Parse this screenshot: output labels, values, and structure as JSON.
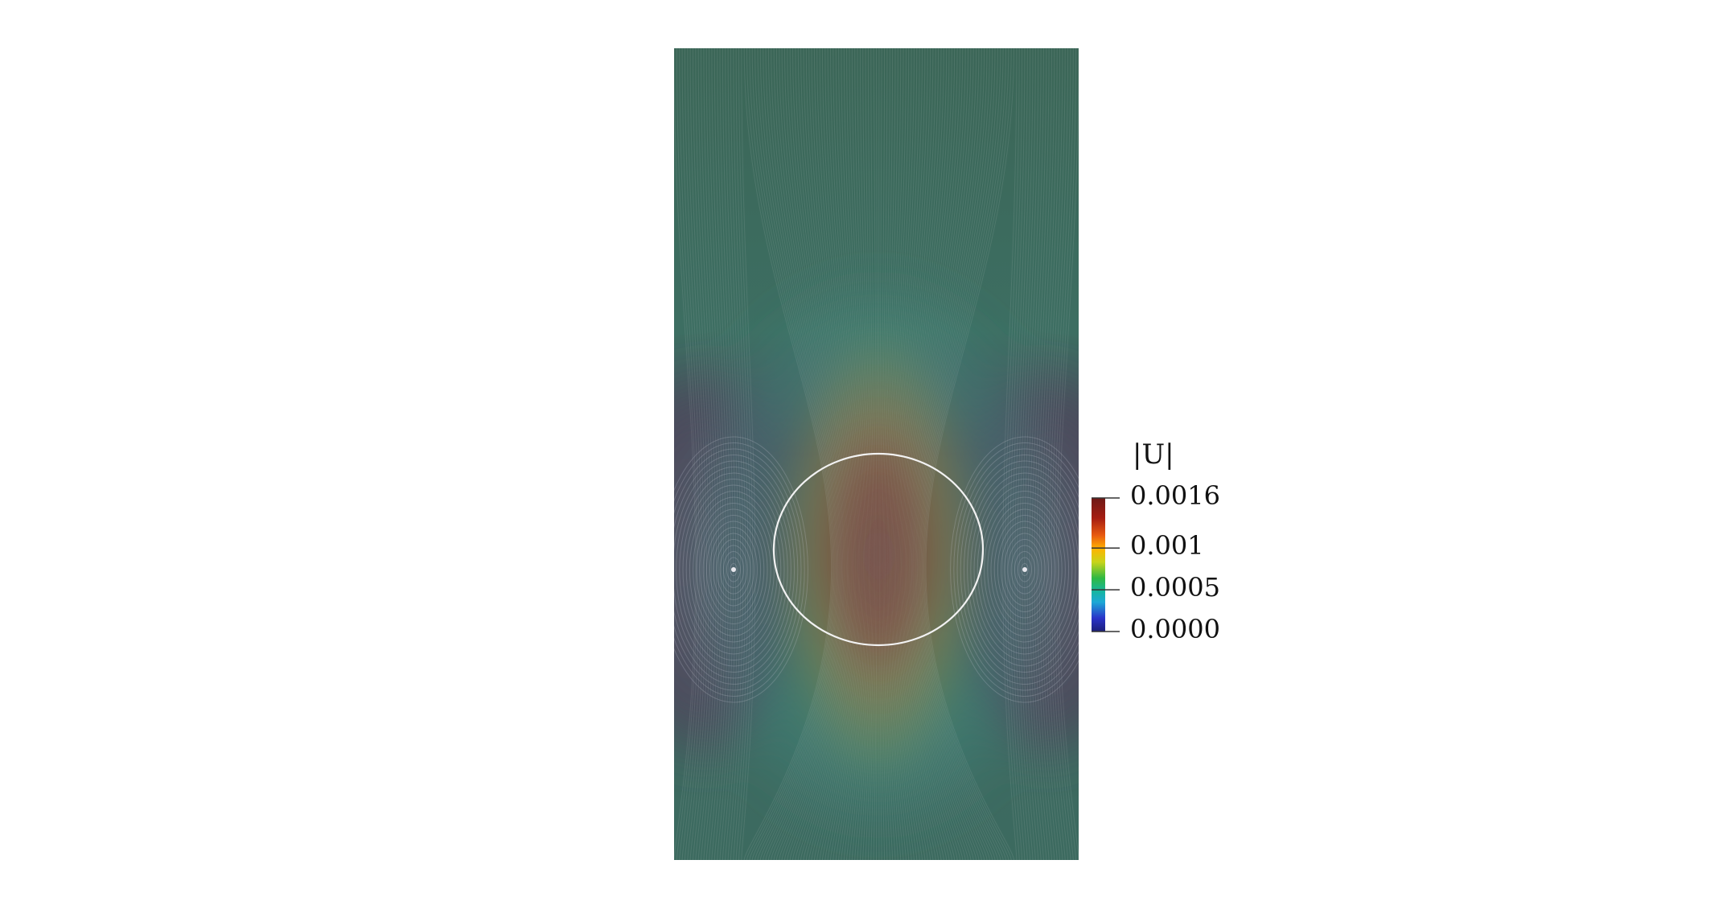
{
  "field": {
    "variable": "|U|",
    "min": 0.0,
    "max": 0.0016
  },
  "colorbar": {
    "title": "|U|",
    "ticks": [
      {
        "value": 0.0016,
        "label": "0.0016"
      },
      {
        "value": 0.001,
        "label": "0.001"
      },
      {
        "value": 0.0005,
        "label": "0.0005"
      },
      {
        "value": 0.0,
        "label": "0.0000"
      }
    ],
    "colormap": [
      "#1c1f7a",
      "#2a33c9",
      "#1da8d6",
      "#16b6a0",
      "#2fb842",
      "#c8d41a",
      "#ffb300",
      "#e85a10",
      "#a51d12",
      "#6e1a17"
    ]
  },
  "colors": {
    "background": "#ffffff",
    "interface": "#f2f2f2"
  }
}
